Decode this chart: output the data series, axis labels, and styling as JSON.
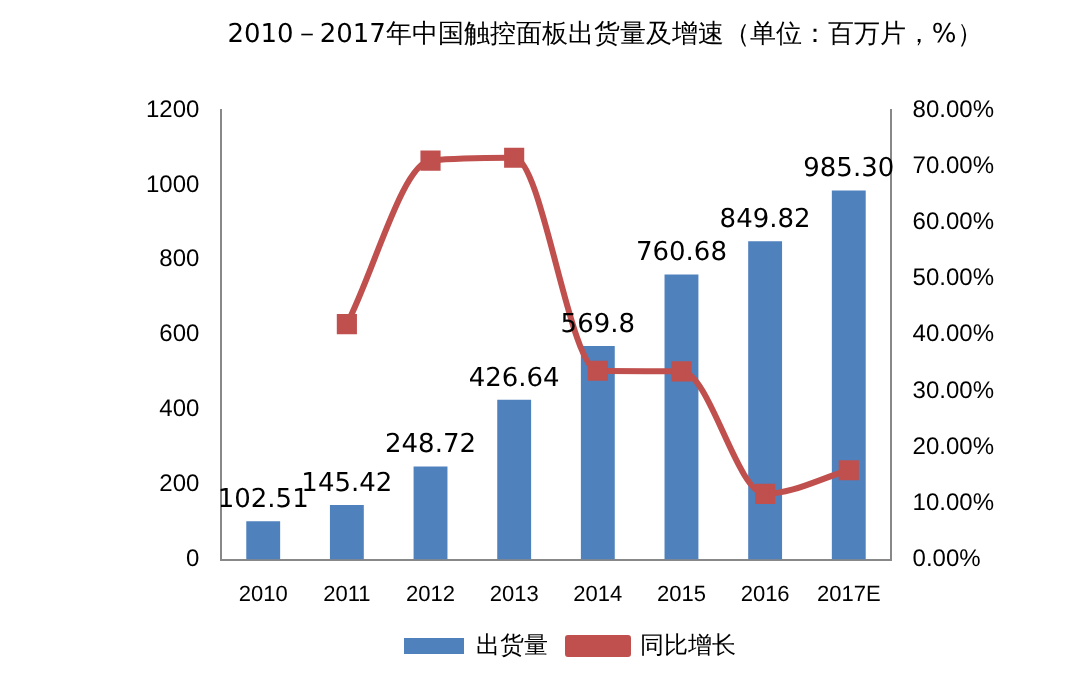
{
  "chart_data": {
    "type": "bar",
    "title": "2010－2017年中国触控面板出货量及增速（单位：百万片，%）",
    "categories": [
      "2010",
      "2011",
      "2012",
      "2013",
      "2014",
      "2015",
      "2016",
      "2017E"
    ],
    "series": [
      {
        "name": "出货量",
        "color": "#4f81bd",
        "values": [
          102.51,
          145.42,
          248.72,
          426.64,
          569.8,
          760.68,
          849.82,
          985.3
        ],
        "value_labels": [
          "102.51",
          "145.42",
          "248.72",
          "426.64",
          "569.8",
          "760.68",
          "849.82",
          "985.30"
        ]
      },
      {
        "name": "同比增长",
        "type": "line",
        "axis": "y2",
        "color": "#c0504d",
        "marker": "square",
        "values": [
          null,
          41.9,
          71.0,
          71.5,
          33.6,
          33.5,
          11.7,
          15.9
        ]
      }
    ],
    "ylim": [
      0,
      1200
    ],
    "yticks": [
      0,
      200,
      400,
      600,
      800,
      1000,
      1200
    ],
    "y2lim": [
      0,
      80
    ],
    "y2ticks": [
      {
        "value": 0,
        "label": "0.00%"
      },
      {
        "value": 10,
        "label": "10.00%"
      },
      {
        "value": 20,
        "label": "20.00%"
      },
      {
        "value": 30,
        "label": "30.00%"
      },
      {
        "value": 40,
        "label": "40.00%"
      },
      {
        "value": 50,
        "label": "50.00%"
      },
      {
        "value": 60,
        "label": "60.00%"
      },
      {
        "value": 70,
        "label": "70.00%"
      },
      {
        "value": 80,
        "label": "80.00%"
      }
    ],
    "grid": false,
    "legend": "bottom"
  }
}
